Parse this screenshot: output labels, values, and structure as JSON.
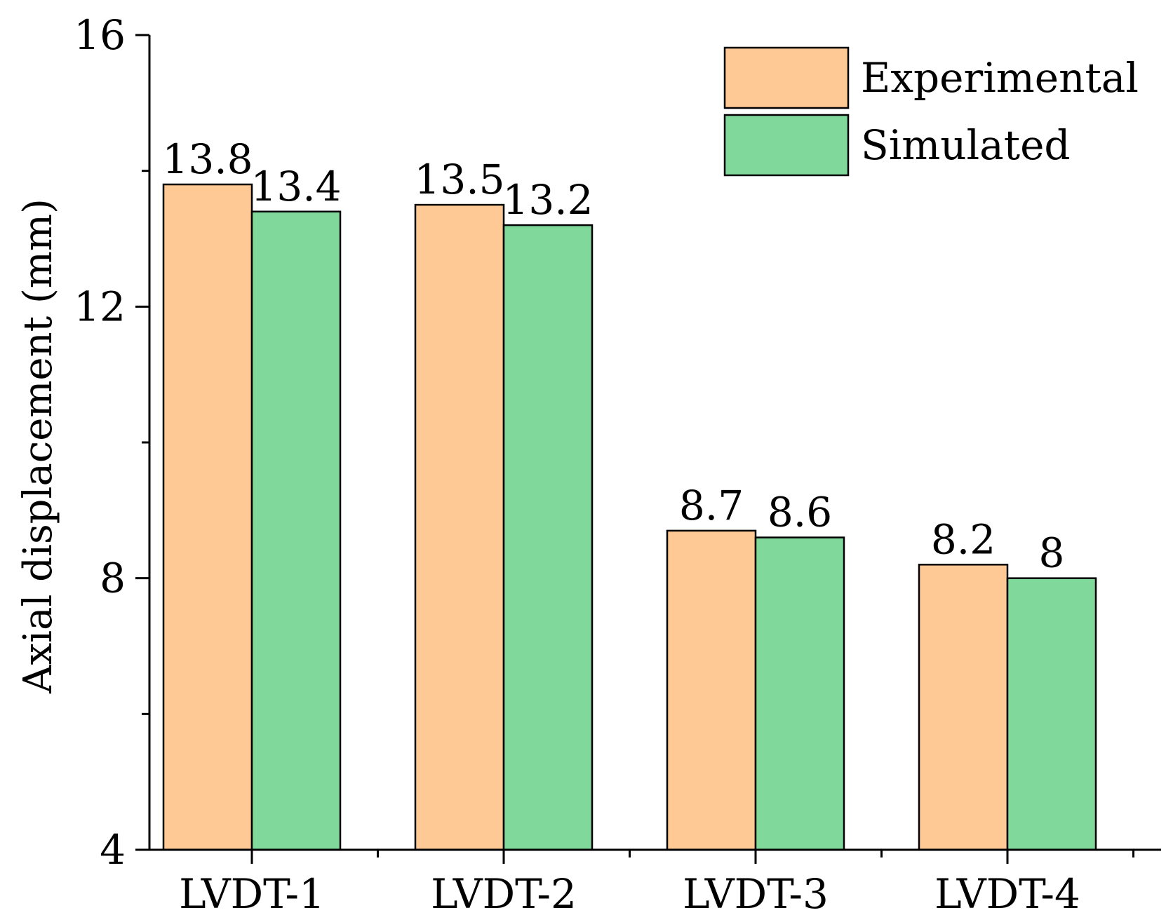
{
  "chart_data": {
    "type": "bar",
    "title": "",
    "xlabel": "",
    "ylabel": "Axial displacement (mm)",
    "ylim": [
      4,
      16
    ],
    "yticks": [
      4,
      8,
      12,
      16
    ],
    "categories": [
      "LVDT-1",
      "LVDT-2",
      "LVDT-3",
      "LVDT-4"
    ],
    "series": [
      {
        "name": "Experimental",
        "color": "#FFC996",
        "values": [
          13.8,
          13.5,
          8.7,
          8.2
        ],
        "labels": [
          "13.8",
          "13.5",
          "8.7",
          "8.2"
        ]
      },
      {
        "name": "Simulated",
        "color": "#80D99B",
        "values": [
          13.4,
          13.2,
          8.6,
          8
        ],
        "labels": [
          "13.4",
          "13.2",
          "8.6",
          "8"
        ]
      }
    ],
    "legend_position": "top-right",
    "grid": false
  }
}
